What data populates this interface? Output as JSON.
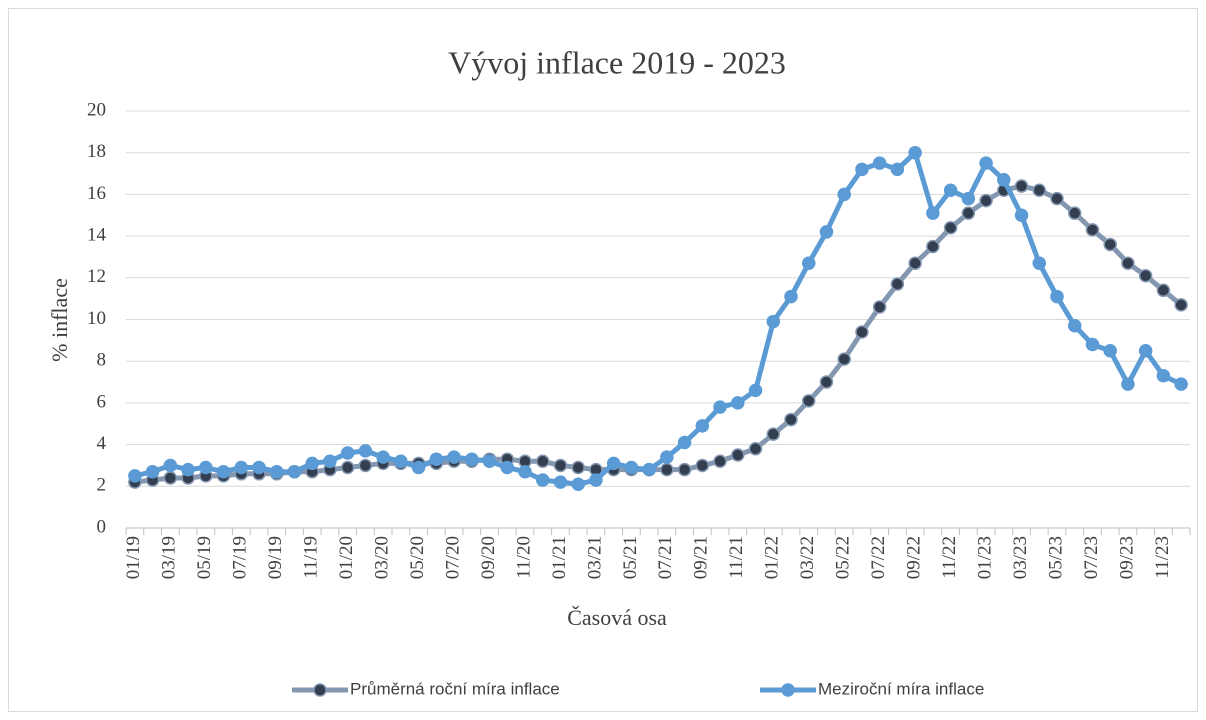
{
  "chart_data": {
    "type": "line",
    "title": "Vývoj inflace 2019 - 2023",
    "x_label": "Časová osa",
    "y_label": "% inflace",
    "categories": [
      "01/19",
      null,
      "03/19",
      null,
      "05/19",
      null,
      "07/19",
      null,
      "09/19",
      null,
      "11/19",
      null,
      "01/20",
      null,
      "03/20",
      null,
      "05/20",
      null,
      "07/20",
      null,
      "09/20",
      null,
      "11/20",
      null,
      "01/21",
      null,
      "03/21",
      null,
      "05/21",
      null,
      "07/21",
      null,
      "09/21",
      null,
      "11/21",
      null,
      "01/22",
      null,
      "03/22",
      null,
      "05/22",
      null,
      "07/22",
      null,
      "09/22",
      null,
      "11/22",
      null,
      "01/23",
      null,
      "03/23",
      null,
      "05/23",
      null,
      "07/23",
      null,
      "09/23",
      null,
      "11/23",
      null
    ],
    "series": [
      {
        "name": "Průměrná roční míra inflace",
        "color": "#8497b0",
        "marker_color": "#333f50",
        "values": [
          2.2,
          2.3,
          2.4,
          2.4,
          2.5,
          2.5,
          2.6,
          2.6,
          2.6,
          2.7,
          2.7,
          2.8,
          2.9,
          3.0,
          3.1,
          3.1,
          3.1,
          3.1,
          3.2,
          3.2,
          3.3,
          3.3,
          3.2,
          3.2,
          3.0,
          2.9,
          2.8,
          2.8,
          2.8,
          2.8,
          2.8,
          2.8,
          3.0,
          3.2,
          3.5,
          3.8,
          4.5,
          5.2,
          6.1,
          7.0,
          8.1,
          9.4,
          10.6,
          11.7,
          12.7,
          13.5,
          14.4,
          15.1,
          15.7,
          16.2,
          16.4,
          16.2,
          15.8,
          15.1,
          14.3,
          13.6,
          12.7,
          12.1,
          11.4,
          10.7
        ]
      },
      {
        "name": "Meziroční míra inflace",
        "color": "#5b9bd5",
        "marker_color": "#5b9bd5",
        "values": [
          2.5,
          2.7,
          3.0,
          2.8,
          2.9,
          2.7,
          2.9,
          2.9,
          2.7,
          2.7,
          3.1,
          3.2,
          3.6,
          3.7,
          3.4,
          3.2,
          2.9,
          3.3,
          3.4,
          3.3,
          3.2,
          2.9,
          2.7,
          2.3,
          2.2,
          2.1,
          2.3,
          3.1,
          2.9,
          2.8,
          3.4,
          4.1,
          4.9,
          5.8,
          6.0,
          6.6,
          9.9,
          11.1,
          12.7,
          14.2,
          16.0,
          17.2,
          17.5,
          17.2,
          18.0,
          15.1,
          16.2,
          15.8,
          17.5,
          16.7,
          15.0,
          12.7,
          11.1,
          9.7,
          8.8,
          8.5,
          6.9,
          8.5,
          7.3,
          6.9
        ]
      }
    ],
    "ylim": [
      0,
      20
    ],
    "yticks": [
      0,
      2,
      4,
      6,
      8,
      10,
      12,
      14,
      16,
      18,
      20
    ],
    "grid": true,
    "legend": "bottom"
  }
}
